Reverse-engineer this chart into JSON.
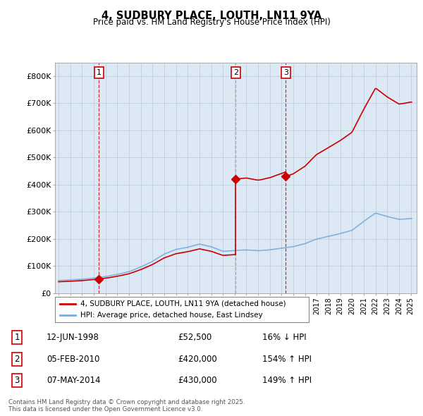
{
  "title": "4, SUDBURY PLACE, LOUTH, LN11 9YA",
  "subtitle": "Price paid vs. HM Land Registry's House Price Index (HPI)",
  "background_color": "#ffffff",
  "plot_bg_color": "#dce9f5",
  "ylim": [
    0,
    850000
  ],
  "yticks": [
    0,
    100000,
    200000,
    300000,
    400000,
    500000,
    600000,
    700000,
    800000
  ],
  "ytick_labels": [
    "£0",
    "£100K",
    "£200K",
    "£300K",
    "£400K",
    "£500K",
    "£600K",
    "£700K",
    "£800K"
  ],
  "xlim_start": 1994.7,
  "xlim_end": 2025.5,
  "sale_dates": [
    1998.44,
    2010.09,
    2014.35
  ],
  "sale_prices": [
    52500,
    420000,
    430000
  ],
  "sale_labels": [
    "1",
    "2",
    "3"
  ],
  "hpi_color": "#7aabdb",
  "price_color": "#cc0000",
  "grid_color": "#c0cfe0",
  "legend_line1": "4, SUDBURY PLACE, LOUTH, LN11 9YA (detached house)",
  "legend_line2": "HPI: Average price, detached house, East Lindsey",
  "table_rows": [
    {
      "num": "1",
      "date": "12-JUN-1998",
      "price": "£52,500",
      "hpi": "16% ↓ HPI"
    },
    {
      "num": "2",
      "date": "05-FEB-2010",
      "price": "£420,000",
      "hpi": "154% ↑ HPI"
    },
    {
      "num": "3",
      "date": "07-MAY-2014",
      "price": "£430,000",
      "hpi": "149% ↑ HPI"
    }
  ],
  "footnote": "Contains HM Land Registry data © Crown copyright and database right 2025.\nThis data is licensed under the Open Government Licence v3.0."
}
